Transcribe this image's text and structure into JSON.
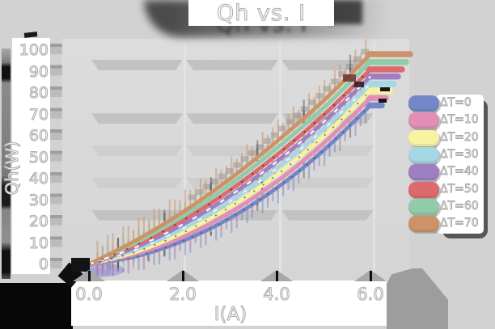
{
  "title": "Qh vs. I",
  "axes": {
    "x_label": "I(A)",
    "y_label": "Qh(W)",
    "x_ticks": [
      "0.0",
      "2.0",
      "4.0",
      "6.0"
    ],
    "y_ticks": [
      "0",
      "10",
      "20",
      "30",
      "40",
      "50",
      "60",
      "70",
      "80",
      "90",
      "100"
    ]
  },
  "legend": {
    "position": "right"
  },
  "chart_data": {
    "type": "line",
    "title": "Qh vs. I",
    "xlabel": "I(A)",
    "ylabel": "Qh(W)",
    "xlim": [
      0,
      6
    ],
    "ylim": [
      0,
      100
    ],
    "x": [
      0,
      1,
      2,
      3,
      4,
      5,
      6
    ],
    "series": [
      {
        "name": "ΔT=0",
        "color": "#7488c8",
        "values": [
          0,
          3.7,
          10.9,
          21.5,
          35.6,
          53.2,
          74.2
        ]
      },
      {
        "name": "ΔT=10",
        "color": "#e18fb4",
        "values": [
          0,
          4.8,
          12.8,
          24.1,
          38.6,
          56.5,
          77.6
        ]
      },
      {
        "name": "ΔT=20",
        "color": "#f8f3a0",
        "values": [
          0,
          5.8,
          14.7,
          26.7,
          41.7,
          59.8,
          80.9
        ]
      },
      {
        "name": "ΔT=30",
        "color": "#a5d8e2",
        "values": [
          0,
          6.9,
          16.6,
          29.3,
          44.8,
          63.1,
          84.3
        ]
      },
      {
        "name": "ΔT=40",
        "color": "#9d80c2",
        "values": [
          0,
          8.0,
          18.6,
          31.9,
          47.9,
          66.4,
          87.7
        ]
      },
      {
        "name": "ΔT=50",
        "color": "#dd6a6d",
        "values": [
          0,
          9.0,
          20.5,
          34.5,
          51.0,
          69.7,
          91.0
        ]
      },
      {
        "name": "ΔT=60",
        "color": "#92cba7",
        "values": [
          0,
          10.1,
          22.4,
          37.1,
          54.1,
          73.0,
          94.4
        ]
      },
      {
        "name": "ΔT=70",
        "color": "#cc9268",
        "values": [
          0,
          11.2,
          24.4,
          39.8,
          57.3,
          76.4,
          98.1
        ]
      }
    ],
    "legend_position": "right",
    "grid": "horizontal-bands"
  }
}
